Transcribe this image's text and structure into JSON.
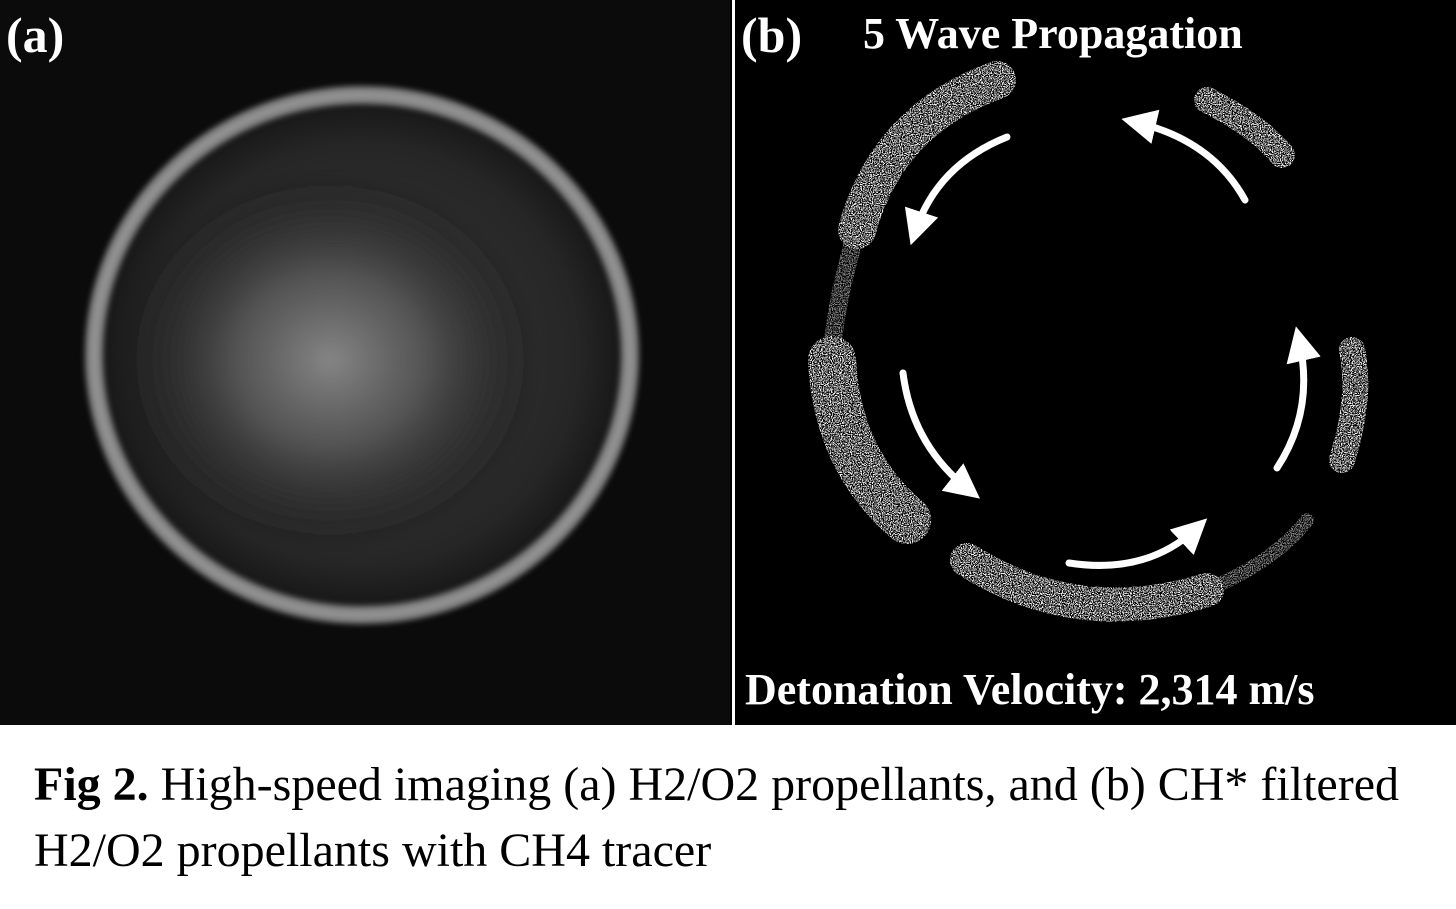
{
  "figure": {
    "panel_a": {
      "label": "(a)"
    },
    "panel_b": {
      "label": "(b)",
      "title": "5 Wave Propagation",
      "readout": "Detonation Velocity: 2,314 m/s"
    },
    "caption": {
      "prefix": "Fig 2.",
      "text": " High-speed imaging (a) H2/O2 propellants, and (b) CH* filtered H2/O2 propellants with CH4 tracer"
    }
  }
}
